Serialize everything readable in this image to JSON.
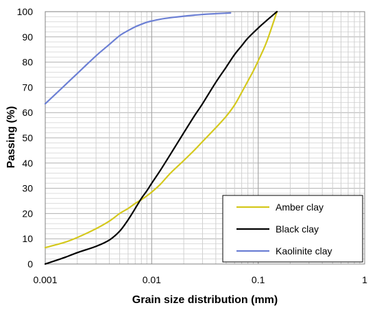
{
  "chart_data": {
    "type": "line",
    "title": "",
    "xlabel": "Grain size distribution (mm)",
    "ylabel": "Passing (%)",
    "xscale": "log",
    "xlim": [
      0.001,
      1
    ],
    "ylim": [
      0,
      100
    ],
    "grid": true,
    "legend_position": "bottom-right",
    "x_ticks": [
      {
        "value": 0.001,
        "label": "0.001"
      },
      {
        "value": 0.01,
        "label": "0.01"
      },
      {
        "value": 0.1,
        "label": "0.1"
      },
      {
        "value": 1,
        "label": "1"
      }
    ],
    "y_ticks": [
      {
        "value": 0,
        "label": "0"
      },
      {
        "value": 10,
        "label": "10"
      },
      {
        "value": 20,
        "label": "20"
      },
      {
        "value": 30,
        "label": "30"
      },
      {
        "value": 40,
        "label": "40"
      },
      {
        "value": 50,
        "label": "50"
      },
      {
        "value": 60,
        "label": "60"
      },
      {
        "value": 70,
        "label": "70"
      },
      {
        "value": 80,
        "label": "80"
      },
      {
        "value": 90,
        "label": "90"
      },
      {
        "value": 100,
        "label": "100"
      }
    ],
    "series": [
      {
        "name": "Amber clay",
        "color": "#d4c81c",
        "x": [
          0.001,
          0.0015,
          0.002,
          0.003,
          0.004,
          0.005,
          0.006,
          0.007,
          0.008,
          0.009,
          0.01,
          0.012,
          0.015,
          0.02,
          0.025,
          0.03,
          0.04,
          0.05,
          0.06,
          0.07,
          0.08,
          0.09,
          0.1,
          0.12,
          0.15
        ],
        "y": [
          6.5,
          8.5,
          10.5,
          14,
          17,
          20,
          22,
          24,
          25.5,
          27,
          28.5,
          31.5,
          36,
          41,
          45,
          48.5,
          54,
          58.5,
          63,
          68,
          72.5,
          76.5,
          80.5,
          88,
          100
        ]
      },
      {
        "name": "Black clay",
        "color": "#000000",
        "x": [
          0.001,
          0.0015,
          0.002,
          0.003,
          0.004,
          0.005,
          0.006,
          0.007,
          0.008,
          0.009,
          0.01,
          0.012,
          0.015,
          0.02,
          0.025,
          0.03,
          0.04,
          0.05,
          0.06,
          0.07,
          0.08,
          0.1,
          0.12,
          0.15
        ],
        "y": [
          0,
          2.5,
          4.5,
          7,
          9.5,
          13,
          17.5,
          22,
          26,
          29,
          32,
          37,
          43.5,
          52,
          58.5,
          63.5,
          72,
          78,
          83,
          86.5,
          89.5,
          93.5,
          96.5,
          100
        ]
      },
      {
        "name": "Kaolinite clay",
        "color": "#6b7fd4",
        "x": [
          0.001,
          0.0015,
          0.002,
          0.003,
          0.004,
          0.005,
          0.006,
          0.007,
          0.008,
          0.009,
          0.01,
          0.012,
          0.015,
          0.02,
          0.025,
          0.03,
          0.04,
          0.05,
          0.055
        ],
        "y": [
          63.5,
          70.5,
          75.5,
          82.5,
          87,
          90.5,
          92.5,
          94,
          95,
          95.8,
          96.3,
          97,
          97.6,
          98.2,
          98.6,
          98.9,
          99.2,
          99.4,
          99.5
        ]
      }
    ]
  }
}
